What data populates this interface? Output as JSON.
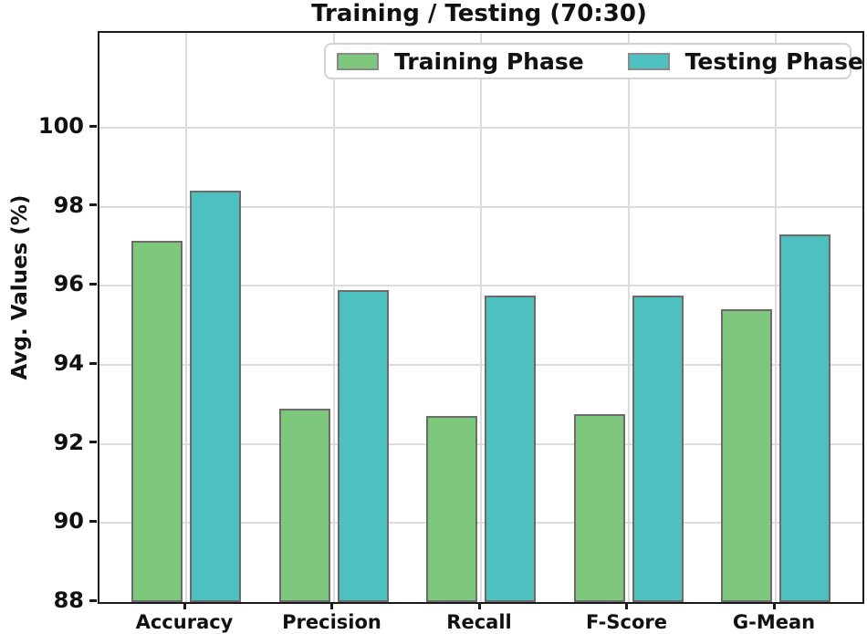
{
  "chart_data": {
    "type": "bar",
    "title": "Training / Testing (70:30)",
    "xlabel": "",
    "ylabel": "Avg. Values (%)",
    "categories": [
      "Accuracy",
      "Precision",
      "Recall",
      "F-Score",
      "G-Mean"
    ],
    "series": [
      {
        "name": "Training Phase",
        "color": "#7ec87e",
        "values": [
          97.15,
          92.9,
          92.7,
          92.75,
          95.4
        ]
      },
      {
        "name": "Testing Phase",
        "color": "#4fc0c0",
        "values": [
          98.4,
          95.9,
          95.75,
          95.75,
          97.3
        ]
      }
    ],
    "ylim": [
      88,
      102.4
    ],
    "yticks": [
      88,
      90,
      92,
      94,
      96,
      98,
      100
    ],
    "grid": true,
    "legend_position": "top-center-inside"
  },
  "colors": {
    "bar_edge": "#6b6b6b",
    "grid": "#dcdcdc",
    "spine": "#1a1a1a",
    "text": "#111111",
    "legend_border": "#d2d2d2"
  }
}
